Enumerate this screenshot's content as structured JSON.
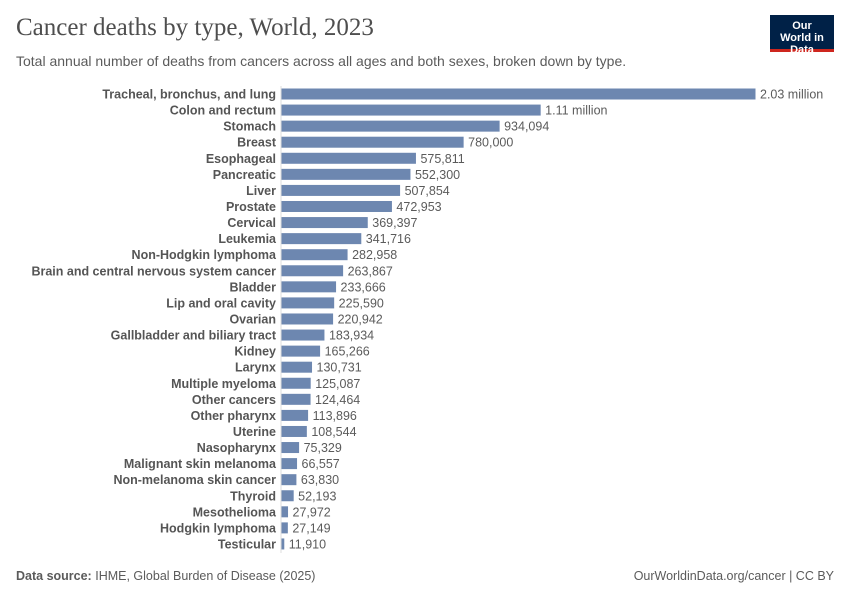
{
  "header": {
    "title": "Cancer deaths by type, World, 2023",
    "subtitle": "Total annual number of deaths from cancers across all ages and both sexes, broken down by type.",
    "logo": "Our World in Data"
  },
  "footer": {
    "source_label": "Data source:",
    "source": "IHME, Global Burden of Disease (2025)",
    "link": "OurWorldinData.org/cancer | CC BY"
  },
  "colors": {
    "bar": "#6d87b0",
    "logo_bg": "#002147",
    "logo_accent": "#ce261e"
  },
  "chart_data": {
    "type": "bar",
    "orientation": "horizontal",
    "title": "Cancer deaths by type, World, 2023",
    "categories": [
      "Tracheal, bronchus, and lung",
      "Colon and rectum",
      "Stomach",
      "Breast",
      "Esophageal",
      "Pancreatic",
      "Liver",
      "Prostate",
      "Cervical",
      "Leukemia",
      "Non-Hodgkin lymphoma",
      "Brain and central nervous system cancer",
      "Bladder",
      "Lip and oral cavity",
      "Ovarian",
      "Gallbladder and biliary tract",
      "Kidney",
      "Larynx",
      "Multiple myeloma",
      "Other cancers",
      "Other pharynx",
      "Uterine",
      "Nasopharynx",
      "Malignant skin melanoma",
      "Non-melanoma skin cancer",
      "Thyroid",
      "Mesothelioma",
      "Hodgkin lymphoma",
      "Testicular"
    ],
    "values": [
      2030000,
      1110000,
      934094,
      780000,
      575811,
      552300,
      507854,
      472953,
      369397,
      341716,
      282958,
      263867,
      233666,
      225590,
      220942,
      183934,
      165266,
      130731,
      125087,
      124464,
      113896,
      108544,
      75329,
      66557,
      63830,
      52193,
      27972,
      27149,
      11910
    ],
    "labels": [
      "2.03 million",
      "1.11 million",
      "934,094",
      "780,000",
      "575,811",
      "552,300",
      "507,854",
      "472,953",
      "369,397",
      "341,716",
      "282,958",
      "263,867",
      "233,666",
      "225,590",
      "220,942",
      "183,934",
      "165,266",
      "130,731",
      "125,087",
      "124,464",
      "113,896",
      "108,544",
      "75,329",
      "66,557",
      "63,830",
      "52,193",
      "27,972",
      "27,149",
      "11,910"
    ]
  }
}
